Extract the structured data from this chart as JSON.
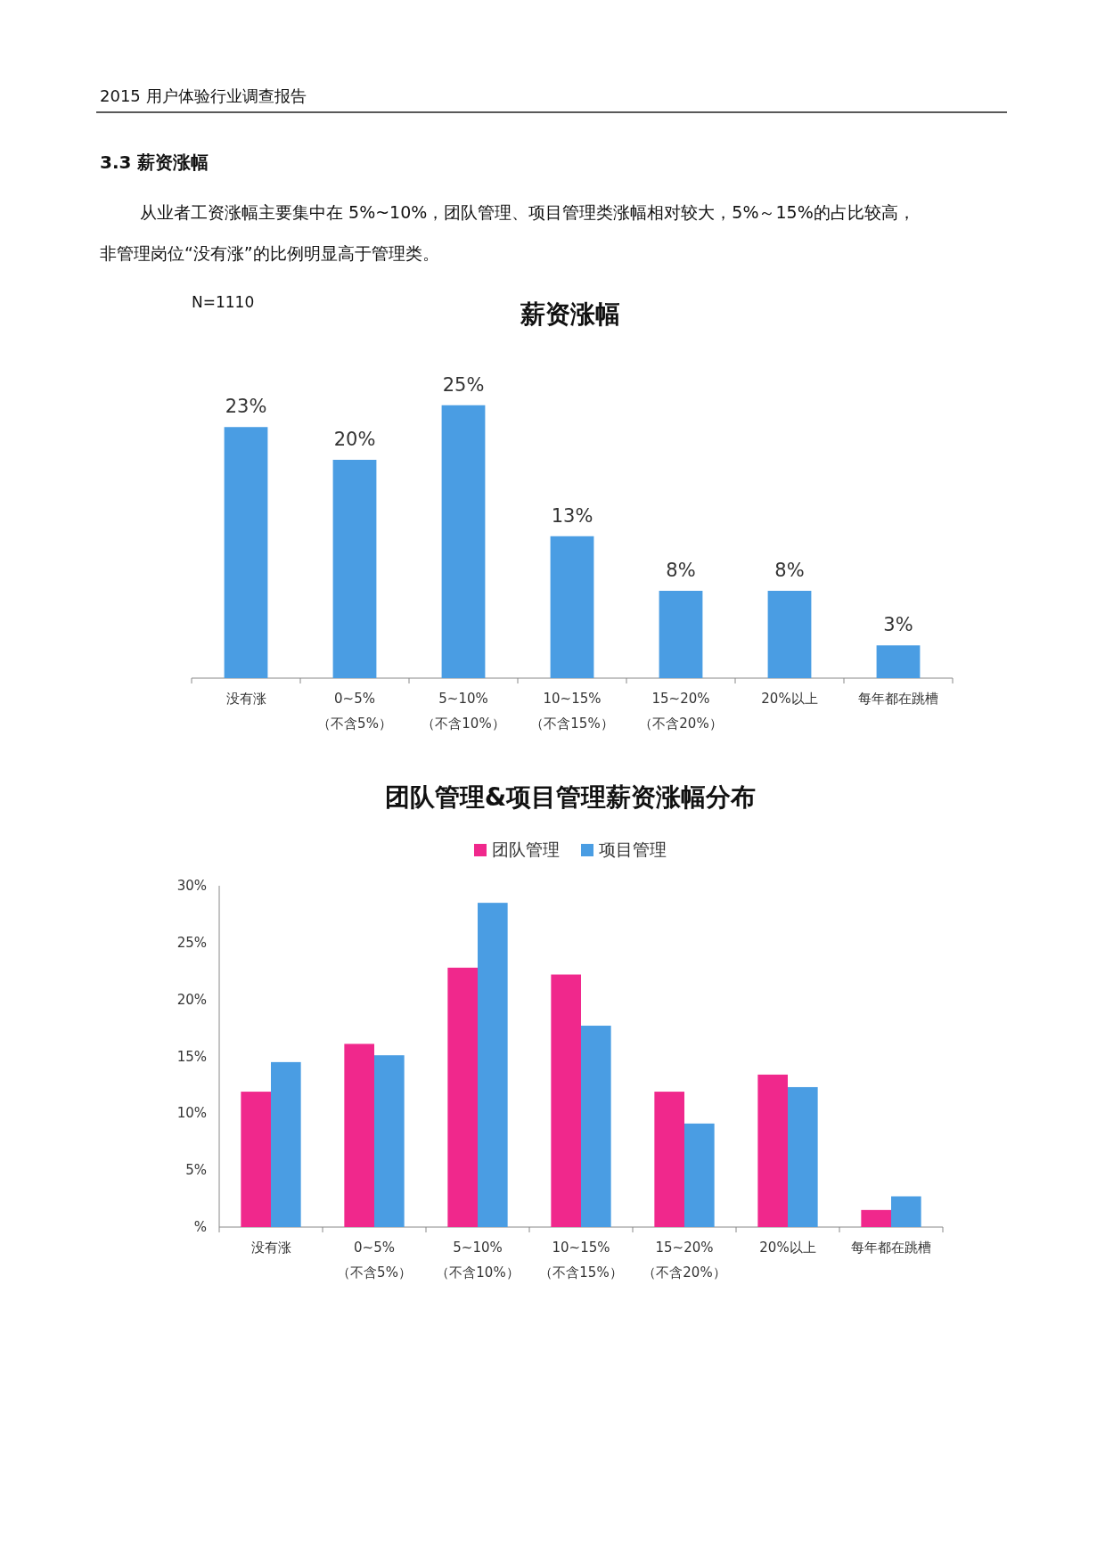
{
  "chart_data": [
    {
      "type": "bar",
      "title": "薪资涨幅",
      "annotations": [
        "2015 用户体验行业调查报告",
        "3.3 薪资涨幅",
        "从业者工资涨幅主要集中在 5%~10%，团队管理、项目管理类涨幅相对较大，5%～15%的占比较高，",
        "非管理岗位“没有涨”的比例明显高于管理类。",
        "N=1110"
      ],
      "categories": [
        "没有涨",
        "0~5%\n（不含5%）",
        "5~10%\n（不含10%）",
        "10~15%\n（不含15%）",
        "15~20%\n（不含20%）",
        "20%以上",
        "每年都在跳槽"
      ],
      "values": [
        23,
        20,
        25,
        13,
        8,
        8,
        3
      ],
      "value_labels": [
        "23%",
        "20%",
        "25%",
        "13%",
        "8%",
        "8%",
        "3%"
      ],
      "color": "#4a9de3"
    },
    {
      "type": "bar",
      "title": "团队管理&项目管理薪资涨幅分布",
      "categories": [
        "没有涨",
        "0~5%\n（不含5%）",
        "5~10%\n（不含10%）",
        "10~15%\n（不含15%）",
        "15~20%\n（不含20%）",
        "20%以上",
        "每年都在跳槽"
      ],
      "series": [
        {
          "name": "团队管理",
          "color": "#f0288c",
          "values": [
            11.9,
            16.1,
            22.8,
            22.2,
            11.9,
            13.4,
            1.5
          ]
        },
        {
          "name": "项目管理",
          "color": "#4a9de3",
          "values": [
            14.5,
            15.1,
            28.5,
            17.7,
            9.1,
            12.3,
            2.7
          ]
        }
      ],
      "ylim": [
        0,
        30
      ],
      "yticks": [
        {
          "value": 0,
          "label": "%"
        },
        {
          "value": 5,
          "label": "5%"
        },
        {
          "value": 10,
          "label": "10%"
        },
        {
          "value": 15,
          "label": "15%"
        },
        {
          "value": 20,
          "label": "20%"
        },
        {
          "value": 25,
          "label": "25%"
        },
        {
          "value": 30,
          "label": "30%"
        }
      ],
      "legend": "top"
    }
  ]
}
